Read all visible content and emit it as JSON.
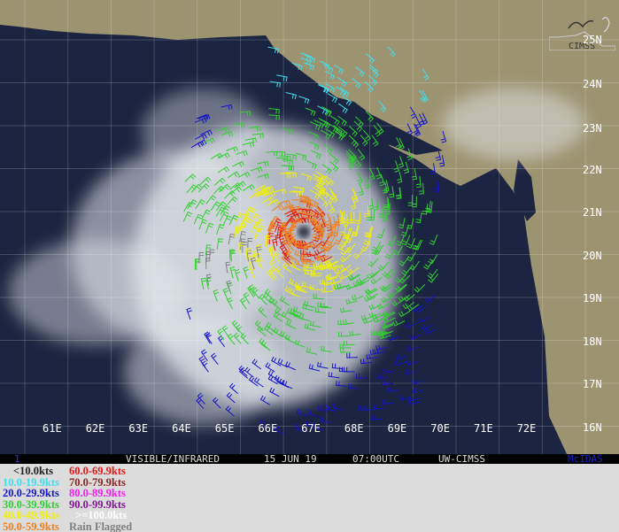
{
  "map": {
    "lat_labels": [
      "25N",
      "24N",
      "23N",
      "22N",
      "21N",
      "20N",
      "19N",
      "18N",
      "17N",
      "16N"
    ],
    "lon_labels": [
      "61E",
      "62E",
      "63E",
      "64E",
      "65E",
      "66E",
      "67E",
      "68E",
      "69E",
      "70E",
      "71E",
      "72E"
    ],
    "logo_text": "CIMSS",
    "colors": {
      "ocean": "#1b2440",
      "land": "#9c9370",
      "cloud": "#e8ecf0"
    }
  },
  "status_bar": {
    "index": "1",
    "product": "VISIBLE/INFRARED",
    "date": "15 JUN 19",
    "time": "07:00UTC",
    "source": "UW-CIMSS",
    "software": "McIDAS"
  },
  "legend": {
    "items": [
      {
        "label": "<10.0kts",
        "color": "#222222"
      },
      {
        "label": "10.0-19.9kts",
        "color": "#3ee0f0"
      },
      {
        "label": "20.0-29.9kts",
        "color": "#1515c8"
      },
      {
        "label": "30.0-39.9kts",
        "color": "#30d030"
      },
      {
        "label": "40.0-49.9kts",
        "color": "#f0f000"
      },
      {
        "label": "50.0-59.9kts",
        "color": "#f08020"
      },
      {
        "label": "60.0-69.9kts",
        "color": "#e01818"
      },
      {
        "label": "70.0-79.9kts",
        "color": "#8a2828"
      },
      {
        "label": "80.0-89.9kts",
        "color": "#f020f0"
      },
      {
        "label": "90.0-99.9kts",
        "color": "#801890"
      },
      {
        "label": ">=100.0kts",
        "color": "#ffffff"
      },
      {
        "label": "Rain Flagged",
        "color": "#808080"
      }
    ]
  }
}
